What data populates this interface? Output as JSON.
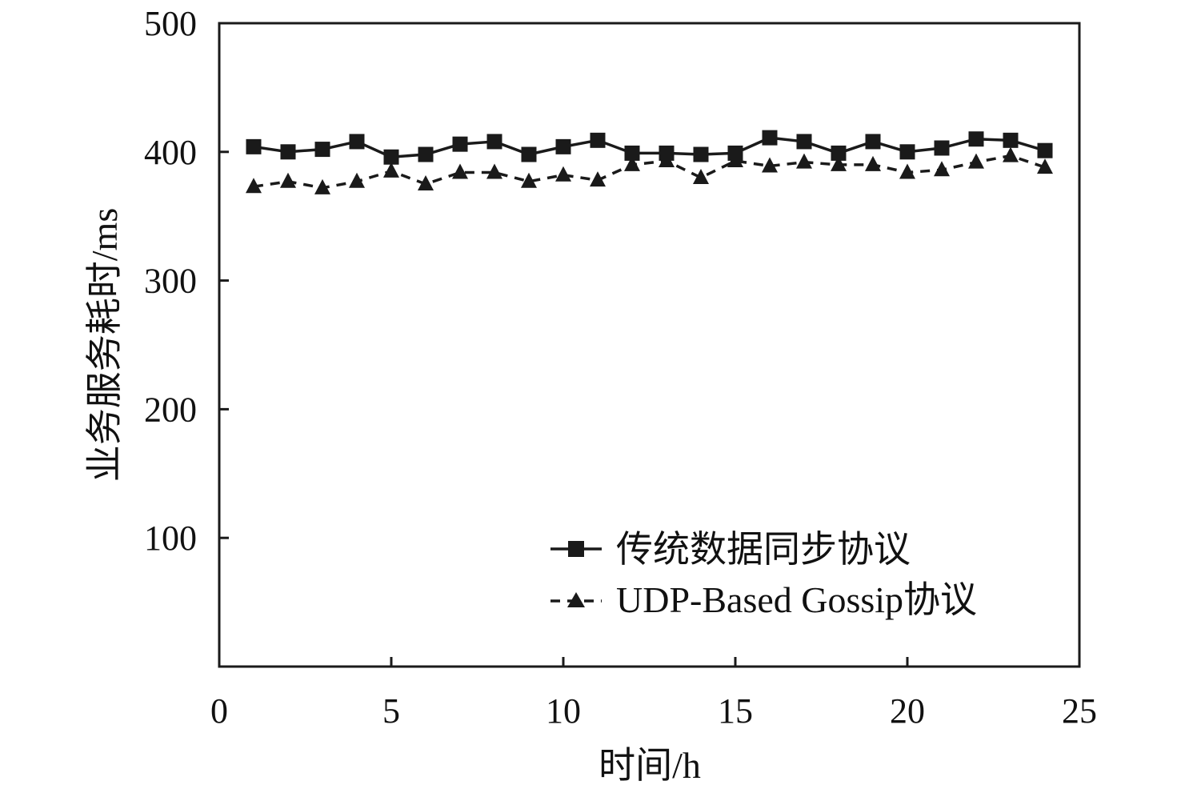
{
  "chart_data": {
    "type": "line",
    "xlabel": "时间/h",
    "ylabel": "业务服务耗时/ms",
    "xlim": [
      0,
      25
    ],
    "ylim": [
      0,
      500
    ],
    "x_ticks": [
      "0",
      "5",
      "10",
      "15",
      "20",
      "25"
    ],
    "y_ticks": [
      "100",
      "200",
      "300",
      "400",
      "500"
    ],
    "grid": false,
    "legend_position": "bottom-right",
    "series": [
      {
        "name": "传统数据同步协议",
        "marker": "square",
        "line_style": "solid",
        "color": "#1a1a1a",
        "x": [
          1,
          2,
          3,
          4,
          5,
          6,
          7,
          8,
          9,
          10,
          11,
          12,
          13,
          14,
          15,
          16,
          17,
          18,
          19,
          20,
          21,
          22,
          23,
          24
        ],
        "values": [
          404,
          400,
          402,
          408,
          396,
          398,
          406,
          408,
          398,
          404,
          409,
          399,
          399,
          398,
          399,
          411,
          408,
          399,
          408,
          400,
          403,
          410,
          409,
          401
        ]
      },
      {
        "name": "UDP-Based Gossip协议",
        "marker": "triangle",
        "line_style": "dashed",
        "color": "#1a1a1a",
        "x": [
          1,
          2,
          3,
          4,
          5,
          6,
          7,
          8,
          9,
          10,
          11,
          12,
          13,
          14,
          15,
          16,
          17,
          18,
          19,
          20,
          21,
          22,
          23,
          24
        ],
        "values": [
          373,
          377,
          372,
          377,
          385,
          375,
          384,
          384,
          377,
          382,
          378,
          390,
          393,
          380,
          393,
          389,
          392,
          390,
          390,
          384,
          386,
          392,
          397,
          388
        ]
      }
    ]
  }
}
